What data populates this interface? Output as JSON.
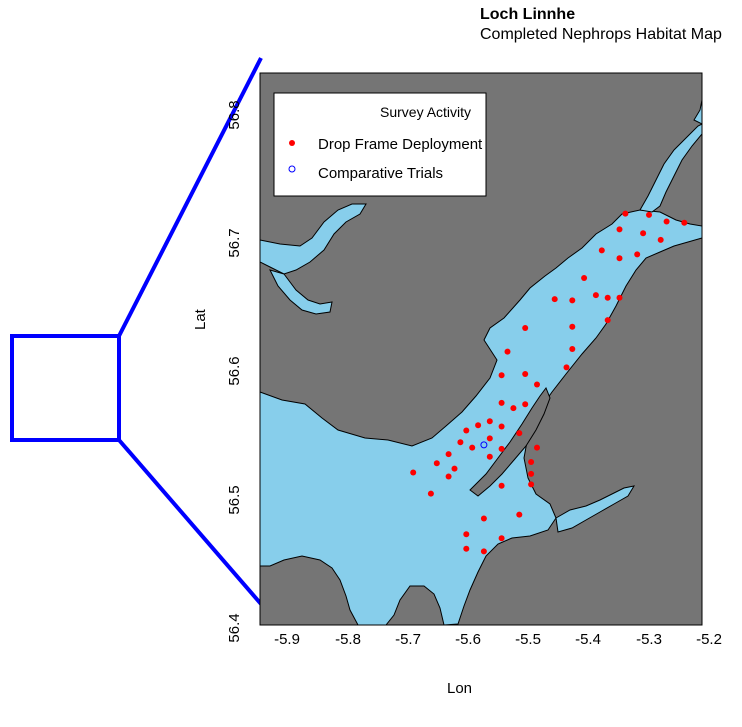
{
  "title": "Loch Linnhe",
  "subtitle": "Completed Nephrops Habitat Map",
  "axes": {
    "xlabel": "Lon",
    "ylabel": "Lat",
    "xticks": [
      "-5.9",
      "-5.8",
      "-5.7",
      "-5.6",
      "-5.5",
      "-5.4",
      "-5.3",
      "-5.2"
    ],
    "yticks": [
      "56.4",
      "56.5",
      "56.6",
      "56.7",
      "56.8"
    ],
    "xlim": [
      -5.93,
      -5.18
    ],
    "ylim": [
      56.39,
      56.81
    ]
  },
  "legend": {
    "title": "Survey Activity",
    "items": [
      {
        "label": "Drop Frame Deployment",
        "marker": "filled-dot",
        "color": "#ff0000"
      },
      {
        "label": "Comparative Trials",
        "marker": "open-circle",
        "color": "#0000ff"
      }
    ]
  },
  "colors": {
    "sea": "#87ceeb",
    "land": "#757575",
    "inset_box": "#0000ff"
  },
  "chart_data": {
    "type": "scatter",
    "title": "Loch Linnhe",
    "subtitle": "Completed Nephrops Habitat Map",
    "xlabel": "Lon",
    "ylabel": "Lat",
    "xlim": [
      -5.93,
      -5.18
    ],
    "ylim": [
      56.39,
      56.81
    ],
    "series": [
      {
        "name": "Drop Frame Deployment",
        "color": "#ff0000",
        "points": [
          [
            -5.31,
            56.703
          ],
          [
            -5.27,
            56.702
          ],
          [
            -5.24,
            56.697
          ],
          [
            -5.21,
            56.696
          ],
          [
            -5.32,
            56.691
          ],
          [
            -5.28,
            56.688
          ],
          [
            -5.25,
            56.683
          ],
          [
            -5.35,
            56.675
          ],
          [
            -5.29,
            56.672
          ],
          [
            -5.32,
            56.669
          ],
          [
            -5.38,
            56.654
          ],
          [
            -5.36,
            56.641
          ],
          [
            -5.4,
            56.637
          ],
          [
            -5.43,
            56.638
          ],
          [
            -5.34,
            56.639
          ],
          [
            -5.32,
            56.639
          ],
          [
            -5.34,
            56.622
          ],
          [
            -5.4,
            56.617
          ],
          [
            -5.48,
            56.616
          ],
          [
            -5.4,
            56.6
          ],
          [
            -5.51,
            56.598
          ],
          [
            -5.41,
            56.586
          ],
          [
            -5.48,
            56.581
          ],
          [
            -5.52,
            56.58
          ],
          [
            -5.46,
            56.573
          ],
          [
            -5.48,
            56.558
          ],
          [
            -5.52,
            56.559
          ],
          [
            -5.5,
            56.555
          ],
          [
            -5.54,
            56.545
          ],
          [
            -5.52,
            56.541
          ],
          [
            -5.56,
            56.542
          ],
          [
            -5.58,
            56.538
          ],
          [
            -5.49,
            56.536
          ],
          [
            -5.54,
            56.532
          ],
          [
            -5.59,
            56.529
          ],
          [
            -5.57,
            56.525
          ],
          [
            -5.52,
            56.524
          ],
          [
            -5.46,
            56.525
          ],
          [
            -5.61,
            56.52
          ],
          [
            -5.54,
            56.518
          ],
          [
            -5.47,
            56.514
          ],
          [
            -5.63,
            56.513
          ],
          [
            -5.6,
            56.509
          ],
          [
            -5.67,
            56.506
          ],
          [
            -5.61,
            56.503
          ],
          [
            -5.47,
            56.505
          ],
          [
            -5.47,
            56.497
          ],
          [
            -5.52,
            56.496
          ],
          [
            -5.64,
            56.49
          ],
          [
            -5.49,
            56.474
          ],
          [
            -5.55,
            56.471
          ],
          [
            -5.58,
            56.459
          ],
          [
            -5.52,
            56.456
          ],
          [
            -5.58,
            56.448
          ],
          [
            -5.55,
            56.446
          ]
        ]
      },
      {
        "name": "Comparative Trials",
        "color": "#0000ff",
        "points": [
          [
            -5.55,
            56.527
          ]
        ]
      }
    ]
  }
}
